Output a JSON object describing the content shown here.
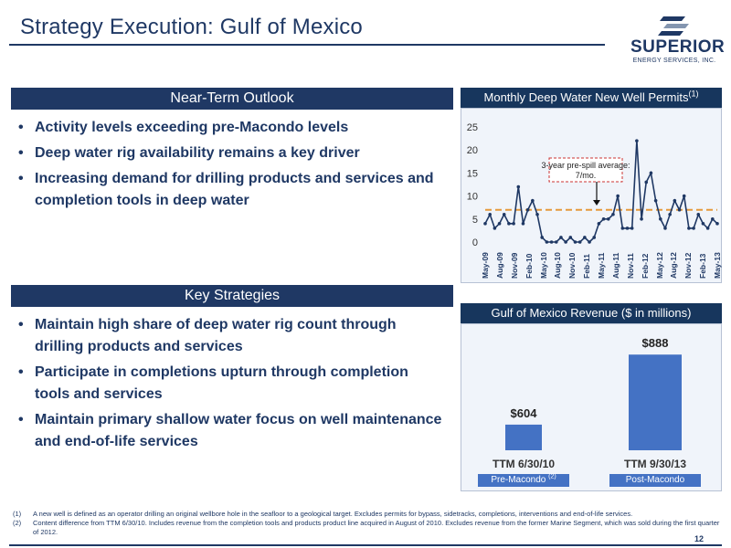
{
  "title": "Strategy Execution: Gulf of Mexico",
  "logo": {
    "word": "SUPERIOR",
    "sub": "ENERGY SERVICES, INC."
  },
  "outlook": {
    "heading": "Near-Term Outlook",
    "bullets": [
      "Activity levels exceeding pre-Macondo levels",
      "Deep water rig availability remains a key driver",
      "Increasing demand for drilling products and services and completion tools in deep water"
    ]
  },
  "strategies": {
    "heading": "Key Strategies",
    "bullets": [
      "Maintain high share of deep water rig count through drilling products and services",
      "Participate in completions upturn through completion tools and services",
      "Maintain primary shallow water focus on well maintenance and end-of-life services"
    ]
  },
  "chart_data": [
    {
      "type": "line",
      "title": "Monthly Deep Water New Well Permits",
      "title_note": "(1)",
      "xlabel": "",
      "ylabel": "",
      "ylim": [
        0,
        25
      ],
      "yticks": [
        "0",
        "5",
        "10",
        "15",
        "20",
        "25"
      ],
      "x_tick_labels": [
        "May-09",
        "Aug-09",
        "Nov-09",
        "Feb-10",
        "May-10",
        "Aug-10",
        "Nov-10",
        "Feb-11",
        "May-11",
        "Aug-11",
        "Nov-11",
        "Feb-12",
        "May-12",
        "Aug-12",
        "Nov-12",
        "Feb-13",
        "May-13"
      ],
      "series": [
        {
          "values": [
            4,
            6,
            3,
            4,
            6,
            4,
            4,
            12,
            4,
            7,
            9,
            6,
            1,
            0,
            0,
            0,
            1,
            0,
            1,
            0,
            0,
            1,
            0,
            1,
            4,
            5,
            5,
            6,
            10,
            3,
            3,
            3,
            22,
            5,
            13,
            15,
            9,
            5,
            3,
            6,
            9,
            7,
            10,
            3,
            3,
            6,
            4,
            3,
            5,
            4
          ],
          "color": "#1f3864"
        }
      ],
      "reference_line": {
        "value": 7,
        "color": "#e59a3c",
        "style": "dashed"
      },
      "annotation": "3-year pre-spill average: 7/mo.",
      "grid": false,
      "legend": "none"
    },
    {
      "type": "bar",
      "title": "Gulf of Mexico Revenue ($ in millions)",
      "categories": [
        "TTM 6/30/10",
        "TTM 9/30/13"
      ],
      "values": [
        604,
        888
      ],
      "data_labels": [
        "$604",
        "$888"
      ],
      "category_tags": [
        "Pre-Macondo",
        "Post-Macondo"
      ],
      "category_tag_notes": [
        "(2)",
        ""
      ],
      "bar_color": "#4472c4",
      "ylim": [
        500,
        900
      ],
      "legend": "none"
    }
  ],
  "footnotes": [
    {
      "num": "(1)",
      "text": "A new well is defined as an operator drilling an original wellbore hole in the seafloor to a geological target. Excludes permits for bypass, sidetracks, completions, interventions and end-of-life services."
    },
    {
      "num": "(2)",
      "text": "Content difference from TTM 6/30/10. Includes revenue from the completion tools and products product line acquired in August of 2010. Excludes revenue from the former Marine Segment, which was sold during the first quarter of 2012."
    }
  ],
  "page_number": "12",
  "colors": {
    "navy": "#1f3864",
    "accent_blue": "#4472c4",
    "orange": "#e59a3c"
  }
}
